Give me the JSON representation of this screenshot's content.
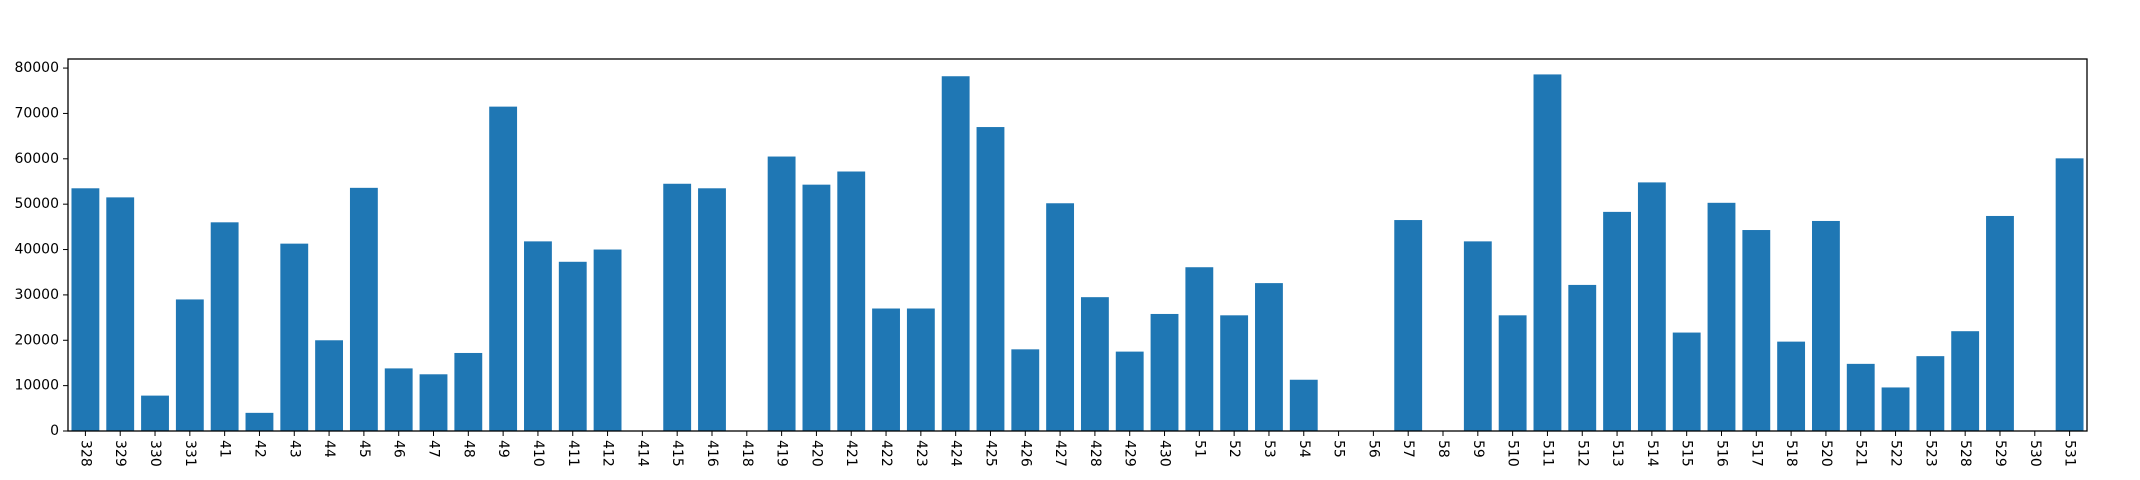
{
  "chart_data": {
    "type": "bar",
    "categories": [
      "328",
      "329",
      "330",
      "331",
      "41",
      "42",
      "43",
      "44",
      "45",
      "46",
      "47",
      "48",
      "49",
      "410",
      "411",
      "412",
      "414",
      "415",
      "416",
      "418",
      "419",
      "420",
      "421",
      "422",
      "423",
      "424",
      "425",
      "426",
      "427",
      "428",
      "429",
      "430",
      "51",
      "52",
      "53",
      "54",
      "55",
      "56",
      "57",
      "58",
      "59",
      "510",
      "511",
      "512",
      "513",
      "514",
      "515",
      "516",
      "517",
      "518",
      "520",
      "521",
      "522",
      "523",
      "528",
      "529",
      "530",
      "531"
    ],
    "values": [
      53500,
      51500,
      7800,
      29000,
      46000,
      4000,
      41300,
      20000,
      53600,
      13800,
      12500,
      17200,
      71500,
      41800,
      37300,
      40000,
      0,
      54500,
      53500,
      0,
      60500,
      54300,
      57200,
      27000,
      27000,
      78200,
      67000,
      18000,
      50200,
      29500,
      17500,
      25800,
      36100,
      25500,
      32600,
      11300,
      0,
      0,
      46500,
      0,
      41800,
      25500,
      78600,
      32200,
      48300,
      54800,
      21700,
      50300,
      44300,
      19700,
      46300,
      14800,
      9600,
      16500,
      22000,
      47400,
      0,
      60100
    ],
    "ylim": [
      0,
      82000
    ],
    "yticks": [
      0,
      10000,
      20000,
      30000,
      40000,
      50000,
      60000,
      70000,
      80000
    ],
    "bar_color": "#1f77b4",
    "grid": false,
    "legend": "none",
    "xtick_rotation": "vertical"
  }
}
